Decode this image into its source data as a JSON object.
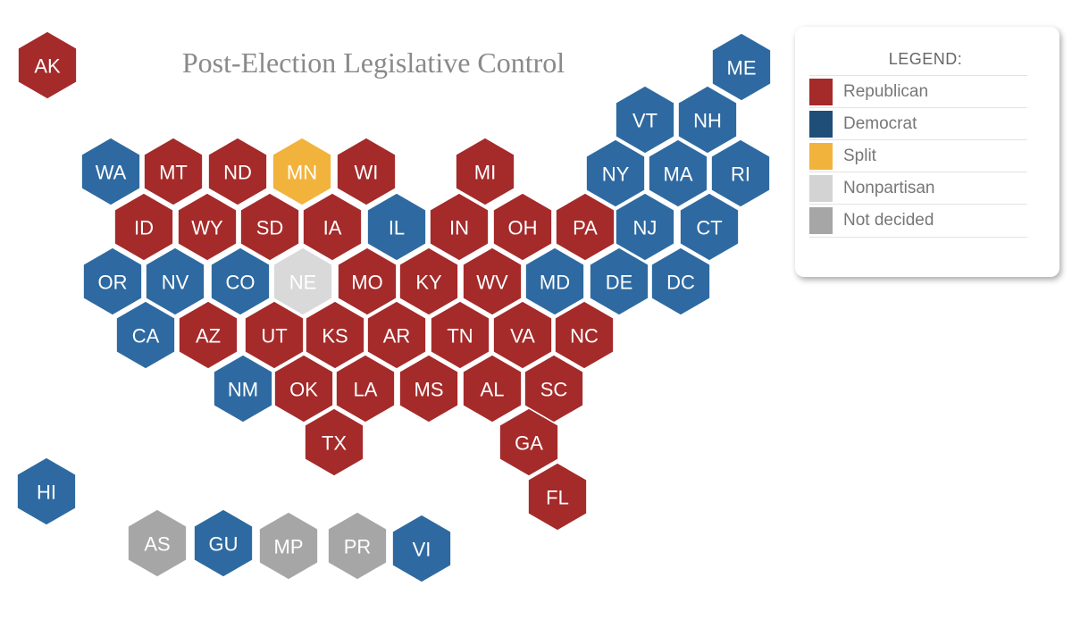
{
  "title": "Post-Election Legislative Control",
  "legend": {
    "title": "LEGEND:",
    "items": [
      {
        "key": "R",
        "label": "Republican",
        "color": "#A52A2A"
      },
      {
        "key": "D",
        "label": "Democrat",
        "color": "#1F4E79"
      },
      {
        "key": "S",
        "label": "Split",
        "color": "#F2B33D"
      },
      {
        "key": "N",
        "label": "Nonpartisan",
        "color": "#D3D3D3"
      },
      {
        "key": "U",
        "label": "Not decided",
        "color": "#A6A6A6"
      }
    ]
  },
  "colors": {
    "R": "#A52A2A",
    "D": "#2E6AA1",
    "S": "#F2B33D",
    "N": "#D9D9D9",
    "U": "#A6A6A6"
  },
  "states": [
    {
      "abbr": "AK",
      "control": "R"
    },
    {
      "abbr": "ME",
      "control": "D"
    },
    {
      "abbr": "VT",
      "control": "D"
    },
    {
      "abbr": "NH",
      "control": "D"
    },
    {
      "abbr": "WA",
      "control": "D"
    },
    {
      "abbr": "MT",
      "control": "R"
    },
    {
      "abbr": "ND",
      "control": "R"
    },
    {
      "abbr": "MN",
      "control": "S"
    },
    {
      "abbr": "WI",
      "control": "R"
    },
    {
      "abbr": "MI",
      "control": "R"
    },
    {
      "abbr": "NY",
      "control": "D"
    },
    {
      "abbr": "MA",
      "control": "D"
    },
    {
      "abbr": "RI",
      "control": "D"
    },
    {
      "abbr": "ID",
      "control": "R"
    },
    {
      "abbr": "WY",
      "control": "R"
    },
    {
      "abbr": "SD",
      "control": "R"
    },
    {
      "abbr": "IA",
      "control": "R"
    },
    {
      "abbr": "IL",
      "control": "D"
    },
    {
      "abbr": "IN",
      "control": "R"
    },
    {
      "abbr": "OH",
      "control": "R"
    },
    {
      "abbr": "PA",
      "control": "R"
    },
    {
      "abbr": "NJ",
      "control": "D"
    },
    {
      "abbr": "CT",
      "control": "D"
    },
    {
      "abbr": "OR",
      "control": "D"
    },
    {
      "abbr": "NV",
      "control": "D"
    },
    {
      "abbr": "CO",
      "control": "D"
    },
    {
      "abbr": "NE",
      "control": "N"
    },
    {
      "abbr": "MO",
      "control": "R"
    },
    {
      "abbr": "KY",
      "control": "R"
    },
    {
      "abbr": "WV",
      "control": "R"
    },
    {
      "abbr": "MD",
      "control": "D"
    },
    {
      "abbr": "DE",
      "control": "D"
    },
    {
      "abbr": "DC",
      "control": "D"
    },
    {
      "abbr": "CA",
      "control": "D"
    },
    {
      "abbr": "AZ",
      "control": "R"
    },
    {
      "abbr": "UT",
      "control": "R"
    },
    {
      "abbr": "KS",
      "control": "R"
    },
    {
      "abbr": "AR",
      "control": "R"
    },
    {
      "abbr": "TN",
      "control": "R"
    },
    {
      "abbr": "VA",
      "control": "R"
    },
    {
      "abbr": "NC",
      "control": "R"
    },
    {
      "abbr": "NM",
      "control": "D"
    },
    {
      "abbr": "OK",
      "control": "R"
    },
    {
      "abbr": "LA",
      "control": "R"
    },
    {
      "abbr": "MS",
      "control": "R"
    },
    {
      "abbr": "AL",
      "control": "R"
    },
    {
      "abbr": "SC",
      "control": "R"
    },
    {
      "abbr": "TX",
      "control": "R"
    },
    {
      "abbr": "GA",
      "control": "R"
    },
    {
      "abbr": "FL",
      "control": "R"
    },
    {
      "abbr": "HI",
      "control": "D"
    },
    {
      "abbr": "AS",
      "control": "U"
    },
    {
      "abbr": "GU",
      "control": "D"
    },
    {
      "abbr": "MP",
      "control": "U"
    },
    {
      "abbr": "PR",
      "control": "U"
    },
    {
      "abbr": "VI",
      "control": "D"
    }
  ]
}
